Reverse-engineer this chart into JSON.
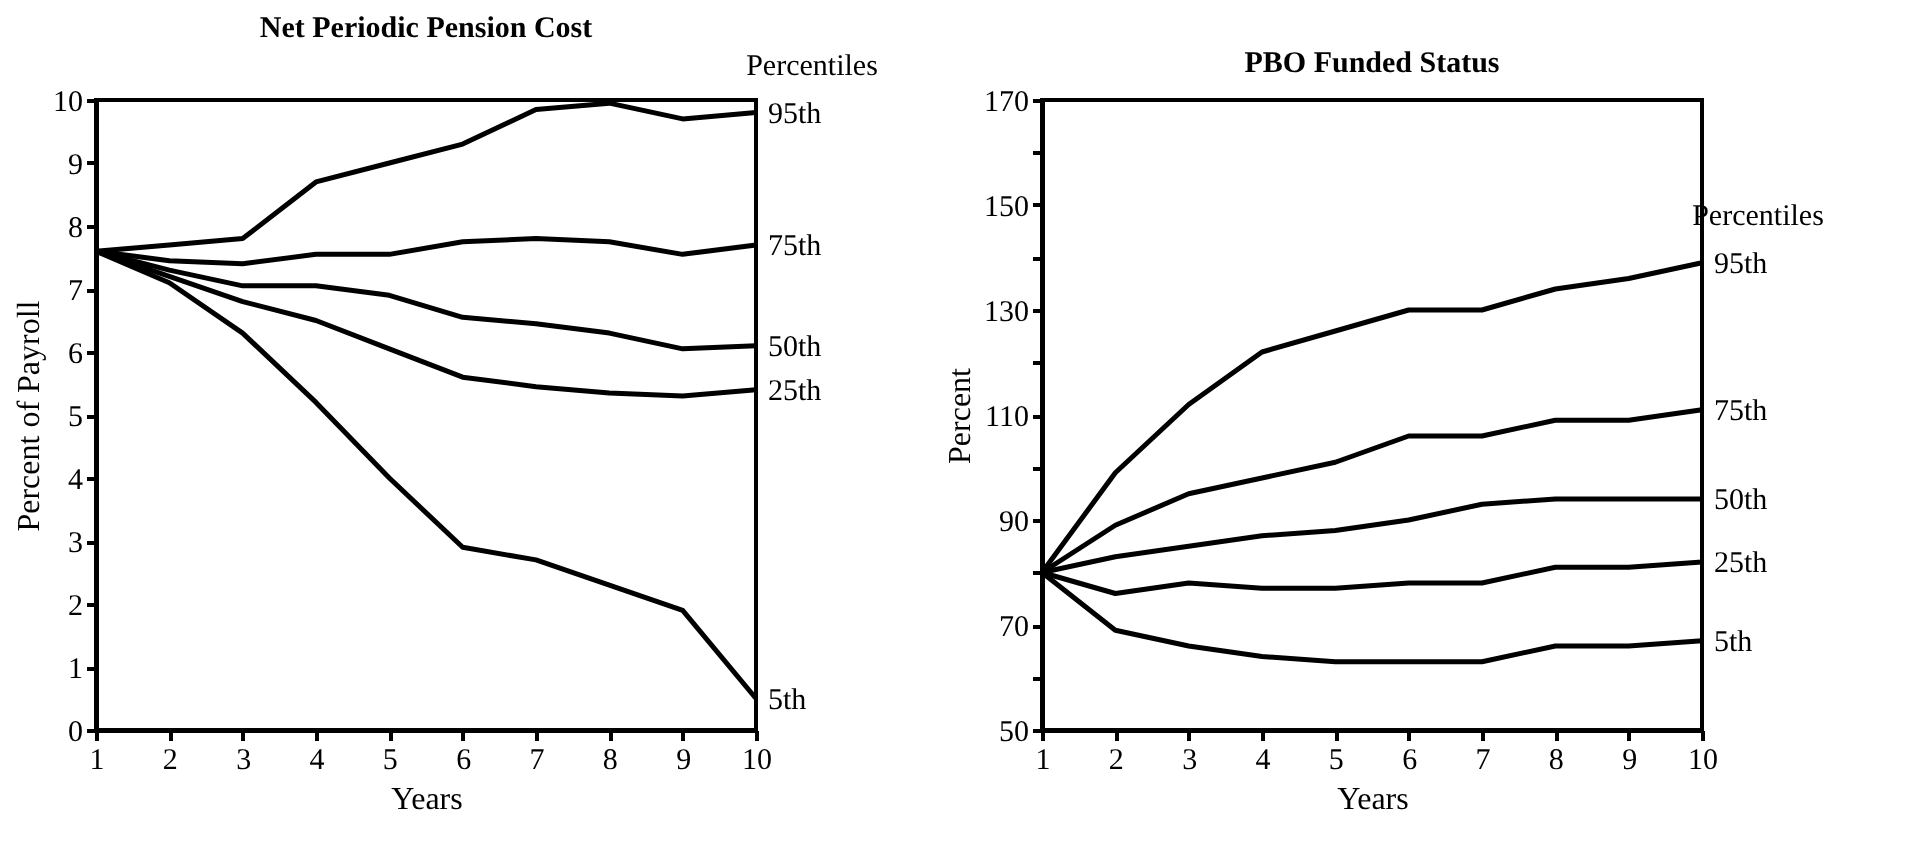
{
  "chart_data": [
    {
      "type": "line",
      "title": "Net Periodic Pension Cost",
      "xlabel": "Years",
      "ylabel": "Percent of Payroll",
      "legend_title": "Percentiles",
      "x": [
        1,
        2,
        3,
        4,
        5,
        6,
        7,
        8,
        9,
        10
      ],
      "xlim": [
        1,
        10
      ],
      "xticks": [
        1,
        2,
        3,
        4,
        5,
        6,
        7,
        8,
        9,
        10
      ],
      "ylim": [
        0,
        10
      ],
      "yticks": [
        0,
        1,
        2,
        3,
        4,
        5,
        6,
        7,
        8,
        9,
        10
      ],
      "grid": false,
      "line_style": "solid",
      "series": [
        {
          "name": "95th",
          "color": "#000000",
          "values": [
            7.6,
            7.7,
            7.8,
            8.7,
            9.0,
            9.3,
            9.85,
            9.95,
            9.7,
            9.8
          ]
        },
        {
          "name": "75th",
          "color": "#000000",
          "values": [
            7.6,
            7.45,
            7.4,
            7.55,
            7.55,
            7.75,
            7.8,
            7.75,
            7.55,
            7.7
          ]
        },
        {
          "name": "50th",
          "color": "#000000",
          "values": [
            7.6,
            7.3,
            7.05,
            7.05,
            6.9,
            6.55,
            6.45,
            6.3,
            6.05,
            6.1
          ]
        },
        {
          "name": "25th",
          "color": "#000000",
          "values": [
            7.6,
            7.2,
            6.8,
            6.5,
            6.05,
            5.6,
            5.45,
            5.35,
            5.3,
            5.4
          ]
        },
        {
          "name": "5th",
          "color": "#000000",
          "values": [
            7.6,
            7.1,
            6.3,
            5.2,
            4.0,
            2.9,
            2.7,
            2.3,
            1.9,
            0.5
          ]
        }
      ]
    },
    {
      "type": "line",
      "title": "PBO Funded Status",
      "xlabel": "Years",
      "ylabel": "Percent",
      "legend_title": "Percentiles",
      "x": [
        1,
        2,
        3,
        4,
        5,
        6,
        7,
        8,
        9,
        10
      ],
      "xlim": [
        1,
        10
      ],
      "xticks": [
        1,
        2,
        3,
        4,
        5,
        6,
        7,
        8,
        9,
        10
      ],
      "ylim": [
        50,
        170
      ],
      "yticks": [
        50,
        {
          "value": 60,
          "label": null
        },
        70,
        {
          "value": 80,
          "label": null
        },
        90,
        {
          "value": 100,
          "label": null
        },
        110,
        {
          "value": 120,
          "label": null
        },
        130,
        {
          "value": 140,
          "label": null
        },
        150,
        {
          "value": 160,
          "label": null
        },
        170
      ],
      "grid": false,
      "line_style": "solid",
      "series": [
        {
          "name": "95th",
          "color": "#000000",
          "values": [
            80,
            99,
            112,
            122,
            126,
            130,
            130,
            134,
            136,
            139
          ]
        },
        {
          "name": "75th",
          "color": "#000000",
          "values": [
            80,
            89,
            95,
            98,
            101,
            106,
            106,
            109,
            109,
            111
          ]
        },
        {
          "name": "50th",
          "color": "#000000",
          "values": [
            80,
            83,
            85,
            87,
            88,
            90,
            93,
            94,
            94,
            94
          ]
        },
        {
          "name": "25th",
          "color": "#000000",
          "values": [
            80,
            76,
            78,
            77,
            77,
            78,
            78,
            81,
            81,
            82
          ]
        },
        {
          "name": "5th",
          "color": "#000000",
          "values": [
            80,
            69,
            66,
            64,
            63,
            63,
            63,
            66,
            66,
            67
          ]
        }
      ]
    }
  ]
}
